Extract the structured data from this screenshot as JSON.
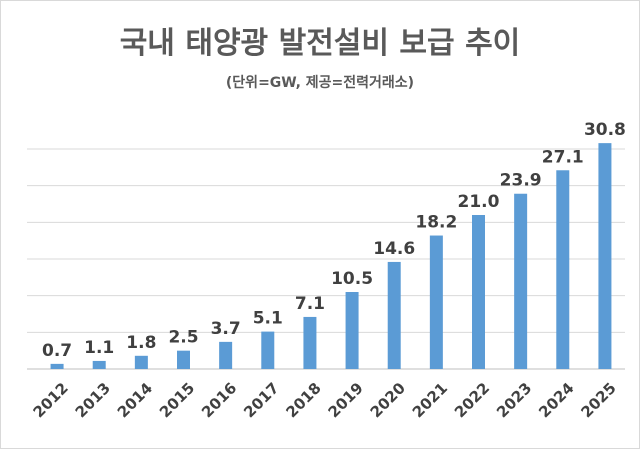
{
  "chart_data": {
    "type": "bar",
    "title": "국내 태양광 발전설비 보급 추이",
    "subtitle": "(단위=GW, 제공=전력거래소)",
    "categories": [
      "2012",
      "2013",
      "2014",
      "2015",
      "2016",
      "2017",
      "2018",
      "2019",
      "2020",
      "2021",
      "2022",
      "2023",
      "2024",
      "2025"
    ],
    "values": [
      0.7,
      1.1,
      1.8,
      2.5,
      3.7,
      5.1,
      7.1,
      10.5,
      14.6,
      18.2,
      21.0,
      23.9,
      27.1,
      30.8
    ],
    "value_labels": [
      "0.7",
      "1.1",
      "1.8",
      "2.5",
      "3.7",
      "5.1",
      "7.1",
      "10.5",
      "14.6",
      "18.2",
      "21.0",
      "23.9",
      "27.1",
      "30.8"
    ],
    "ylim": [
      0,
      30
    ],
    "y_gridlines": [
      0,
      5,
      10,
      15,
      20,
      25,
      30
    ],
    "grid": true,
    "xlabel": "",
    "ylabel": "",
    "bar_color": "#5b9bd5",
    "text_color": "#404040"
  }
}
